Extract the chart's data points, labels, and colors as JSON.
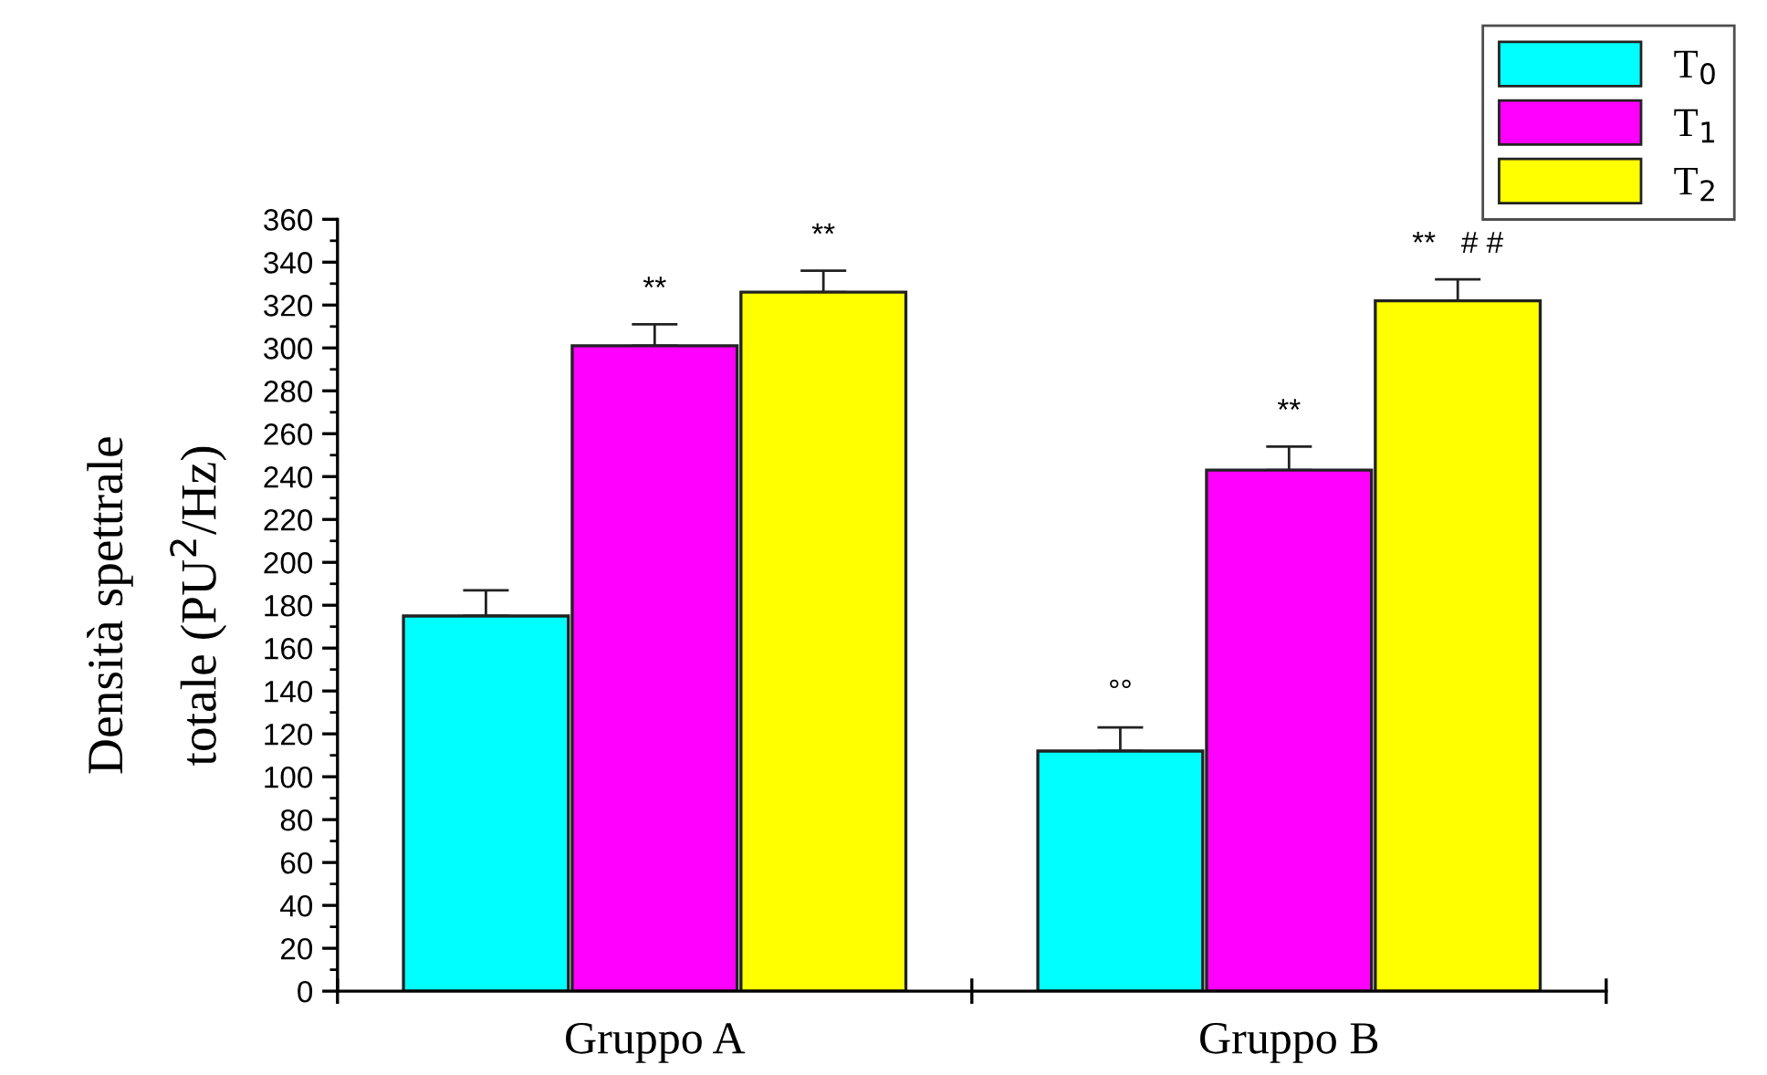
{
  "chart_data": {
    "type": "bar",
    "ylabel": "Densità spettrale\ntotale (PU$^{2}$/Hz)",
    "categories": [
      "Gruppo A",
      "Gruppo B"
    ],
    "series": [
      {
        "name": "T$_{0}$",
        "color": "#00ffff",
        "values": [
          175,
          112
        ],
        "errors": [
          12,
          11
        ],
        "value_labels": [
          null,
          "°°"
        ]
      },
      {
        "name": "T$_{1}$",
        "color": "#ff00ff",
        "values": [
          301,
          243
        ],
        "errors": [
          10,
          11
        ],
        "value_labels": [
          "**",
          "**"
        ]
      },
      {
        "name": "T$_{2}$",
        "color": "#ffff00",
        "values": [
          326,
          322
        ],
        "errors": [
          10,
          10
        ],
        "value_labels": [
          "**",
          "**   # #"
        ]
      }
    ],
    "ylim": [
      0,
      360
    ],
    "yticks": [
      0,
      20,
      40,
      60,
      80,
      100,
      120,
      140,
      160,
      180,
      200,
      220,
      240,
      260,
      280,
      300,
      320,
      340,
      360
    ],
    "grid": false,
    "legend": "top right"
  }
}
